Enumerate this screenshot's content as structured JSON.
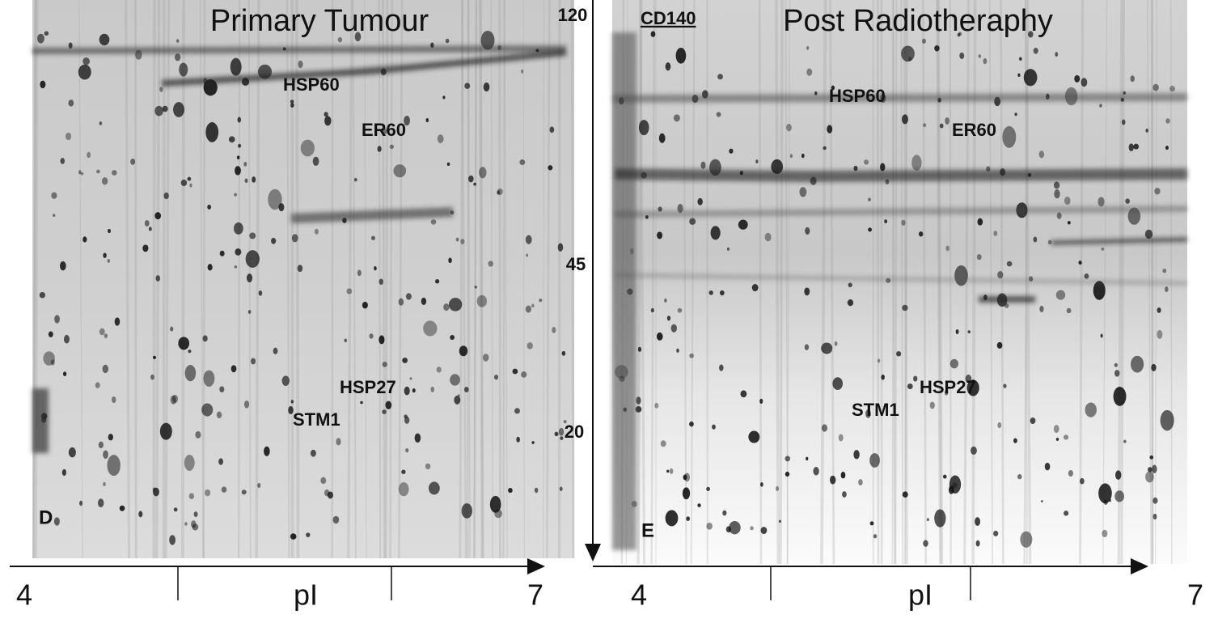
{
  "panels": [
    {
      "title": "Primary Tumour",
      "letter": "D",
      "labels": [
        "HSP60",
        "ER60",
        "HSP27",
        "STM1"
      ],
      "x_axis": {
        "ticks": [
          "4",
          "7"
        ],
        "label": "pI"
      }
    },
    {
      "title": "Post Radiotheraphy",
      "letter": "E",
      "marker": "CD140",
      "labels": [
        "HSP60",
        "ER60",
        "HSP27",
        "STM1"
      ],
      "x_axis": {
        "ticks": [
          "4",
          "7"
        ],
        "label": "pI"
      }
    }
  ],
  "mw_axis": {
    "ticks": [
      "120",
      "45",
      "20"
    ]
  }
}
